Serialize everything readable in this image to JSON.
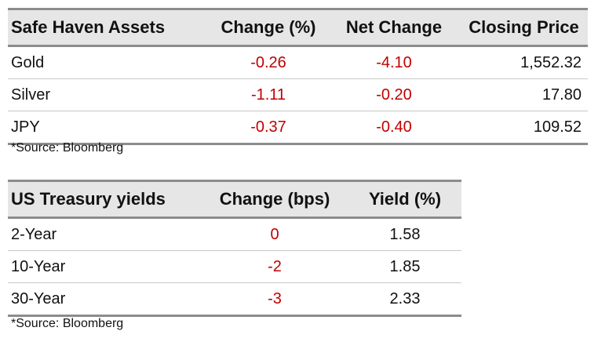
{
  "safe_haven": {
    "headers": [
      "Safe Haven Assets",
      "Change (%)",
      "Net Change",
      "Closing Price"
    ],
    "rows": [
      {
        "name": "Gold",
        "change_pct": "-0.26",
        "net_change": "-4.10",
        "closing_price": "1,552.32"
      },
      {
        "name": "Silver",
        "change_pct": "-1.11",
        "net_change": "-0.20",
        "closing_price": "17.80"
      },
      {
        "name": "JPY",
        "change_pct": "-0.37",
        "net_change": "-0.40",
        "closing_price": "109.52"
      }
    ],
    "source": "*Source: Bloomberg"
  },
  "treasury": {
    "headers": [
      "US Treasury yields",
      "Change (bps)",
      "Yield (%)"
    ],
    "rows": [
      {
        "name": "2-Year",
        "change_bps": "0",
        "yield_pct": "1.58"
      },
      {
        "name": "10-Year",
        "change_bps": "-2",
        "yield_pct": "1.85"
      },
      {
        "name": "30-Year",
        "change_bps": "-3",
        "yield_pct": "2.33"
      }
    ],
    "source": "*Source: Bloomberg"
  },
  "colors": {
    "header_bg": "#e7e6e6",
    "border": "#8c8c8c",
    "negative": "#c00000"
  }
}
